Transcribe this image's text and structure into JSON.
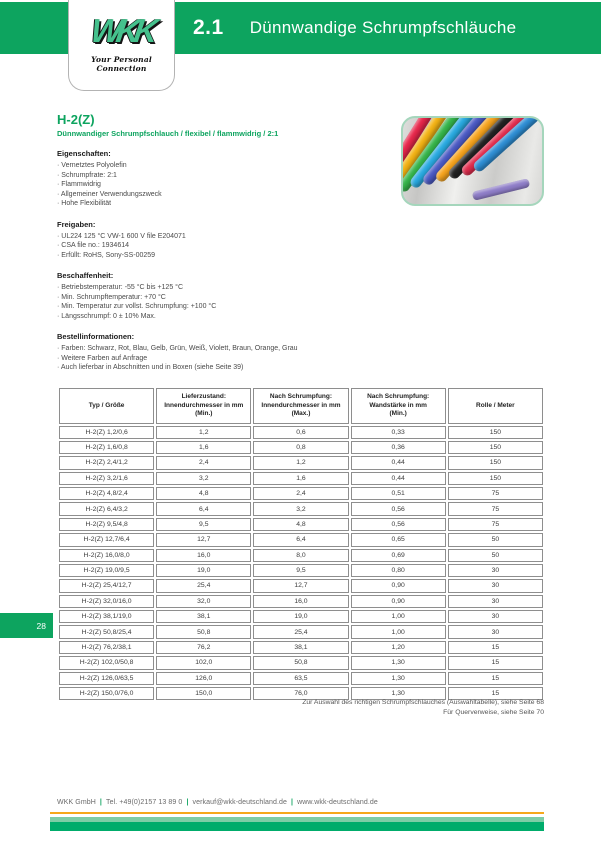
{
  "header": {
    "chapter": "2.1",
    "title": "Dünnwandige Schrumpfschläuche",
    "logo_text": "WKK",
    "logo_tagline": "Your Personal Connection"
  },
  "product": {
    "title": "H-2(Z)",
    "subtitle": "Dünnwandiger Schrumpfschlauch / flexibel / flammwidrig / 2:1"
  },
  "sections": [
    {
      "title": "Eigenschaften:",
      "items": [
        "Vernetztes Polyolefin",
        "Schrumpfrate: 2:1",
        "Flammwidrig",
        "Allgemeiner Verwendungszweck",
        "Hohe Flexibilität"
      ]
    },
    {
      "title": "Freigaben:",
      "items": [
        "UL224 125 °C VW-1 600 V file E204071",
        "CSA file no.: 1934614",
        "Erfüllt: RoHS, Sony-SS-00259"
      ]
    },
    {
      "title": "Beschaffenheit:",
      "items": [
        "Betriebstemperatur: -55 °C bis +125 °C",
        "Min. Schrumpftemperatur: +70 °C",
        "Min. Temperatur zur vollst. Schrumpfung: +100 °C",
        "Längsschrumpf: 0 ± 10% Max."
      ]
    },
    {
      "title": "Bestellinformationen:",
      "items": [
        "Farben: Schwarz, Rot, Blau, Gelb, Grün, Weiß, Violett, Braun, Orange, Grau",
        "Weitere Farben auf Anfrage",
        "Auch lieferbar in Abschnitten und in Boxen (siehe Seite 39)"
      ]
    }
  ],
  "table": {
    "headers": [
      "Typ / Größe",
      "Lieferzustand:\nInnendurchmesser in mm\n(Min.)",
      "Nach Schrumpfung:\nInnendurchmesser in mm\n(Max.)",
      "Nach Schrumpfung:\nWandstärke in mm\n(Min.)",
      "Rolle / Meter"
    ],
    "rows": [
      [
        "H-2(Z) 1,2/0,6",
        "1,2",
        "0,6",
        "0,33",
        "150"
      ],
      [
        "H-2(Z) 1,6/0,8",
        "1,6",
        "0,8",
        "0,36",
        "150"
      ],
      [
        "H-2(Z) 2,4/1,2",
        "2,4",
        "1,2",
        "0,44",
        "150"
      ],
      [
        "H-2(Z) 3,2/1,6",
        "3,2",
        "1,6",
        "0,44",
        "150"
      ],
      [
        "H-2(Z) 4,8/2,4",
        "4,8",
        "2,4",
        "0,51",
        "75"
      ],
      [
        "H-2(Z) 6,4/3,2",
        "6,4",
        "3,2",
        "0,56",
        "75"
      ],
      [
        "H-2(Z) 9,5/4,8",
        "9,5",
        "4,8",
        "0,56",
        "75"
      ],
      [
        "H-2(Z) 12,7/6,4",
        "12,7",
        "6,4",
        "0,65",
        "50"
      ],
      [
        "H-2(Z) 16,0/8,0",
        "16,0",
        "8,0",
        "0,69",
        "50"
      ],
      [
        "H-2(Z) 19,0/9,5",
        "19,0",
        "9,5",
        "0,80",
        "30"
      ],
      [
        "H-2(Z) 25,4/12,7",
        "25,4",
        "12,7",
        "0,90",
        "30"
      ],
      [
        "H-2(Z) 32,0/16,0",
        "32,0",
        "16,0",
        "0,90",
        "30"
      ],
      [
        "H-2(Z) 38,1/19,0",
        "38,1",
        "19,0",
        "1,00",
        "30"
      ],
      [
        "H-2(Z) 50,8/25,4",
        "50,8",
        "25,4",
        "1,00",
        "30"
      ],
      [
        "H-2(Z) 76,2/38,1",
        "76,2",
        "38,1",
        "1,20",
        "15"
      ],
      [
        "H-2(Z) 102,0/50,8",
        "102,0",
        "50,8",
        "1,30",
        "15"
      ],
      [
        "H-2(Z) 126,0/63,5",
        "126,0",
        "63,5",
        "1,30",
        "15"
      ],
      [
        "H-2(Z) 150,0/76,0",
        "150,0",
        "76,0",
        "1,30",
        "15"
      ]
    ]
  },
  "footnotes": [
    "Zur Auswahl des richtigen Schrumpfschlauches (Auswahltabelle), siehe Seite 68",
    "Für Querverweise, siehe Seite 70"
  ],
  "page_number": "28",
  "footer": {
    "segments": [
      "WKK GmbH",
      "Tel. +49(0)2157 13 89 0",
      "verkauf@wkk-deutschland.de",
      "www.wkk-deutschland.de"
    ]
  },
  "colors": {
    "brand_green": "#0DA45F",
    "footer_dark_green": "#00AC6B",
    "footer_light_green": "#7ECDA6",
    "accent_orange": "#F6A81C"
  },
  "product_image": {
    "tube_colors": [
      "#E8274B",
      "#F4B314",
      "#35B54A",
      "#29ABE2",
      "#4B5AC5",
      "#F7A41D",
      "#222222",
      "#E32D4E",
      "#2E8FD6"
    ],
    "shrunk_piece_color": "#8F7EC8"
  }
}
